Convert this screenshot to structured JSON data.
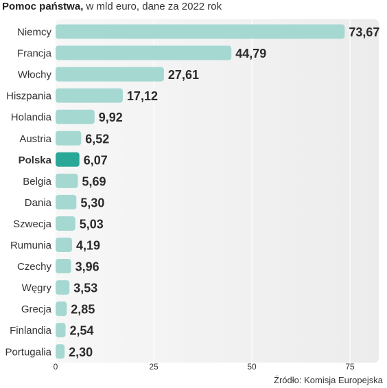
{
  "title_bold": "Pomoc państwa,",
  "title_rest": " w mld euro, dane za 2022 rok",
  "source": "Źródło: Komisja Europejska",
  "colors": {
    "bar": "#a6d8d2",
    "highlight": "#2aa897",
    "plot_bg": "#ececec",
    "grid": "#ffffff"
  },
  "chart_data": {
    "type": "bar",
    "orientation": "horizontal",
    "title": "Pomoc państwa, w mld euro, dane za 2022 rok",
    "categories": [
      "Niemcy",
      "Francja",
      "Włochy",
      "Hiszpania",
      "Holandia",
      "Austria",
      "Polska",
      "Belgia",
      "Dania",
      "Szwecja",
      "Rumunia",
      "Czechy",
      "Węgry",
      "Grecja",
      "Finlandia",
      "Portugalia"
    ],
    "values": [
      73.67,
      44.79,
      27.61,
      17.12,
      9.92,
      6.52,
      6.07,
      5.69,
      5.3,
      5.03,
      4.19,
      3.96,
      3.53,
      2.85,
      2.54,
      2.3
    ],
    "value_labels": [
      "73,67",
      "44,79",
      "27,61",
      "17,12",
      "9,92",
      "6,52",
      "6,07",
      "5,69",
      "5,30",
      "5,03",
      "4,19",
      "3,96",
      "3,53",
      "2,85",
      "2,54",
      "2,30"
    ],
    "highlight_category": "Polska",
    "xlim": [
      0,
      75
    ],
    "xticks": [
      0,
      25,
      50,
      75
    ],
    "xtick_labels": [
      "0",
      "25",
      "50",
      "75"
    ],
    "grid": true
  }
}
